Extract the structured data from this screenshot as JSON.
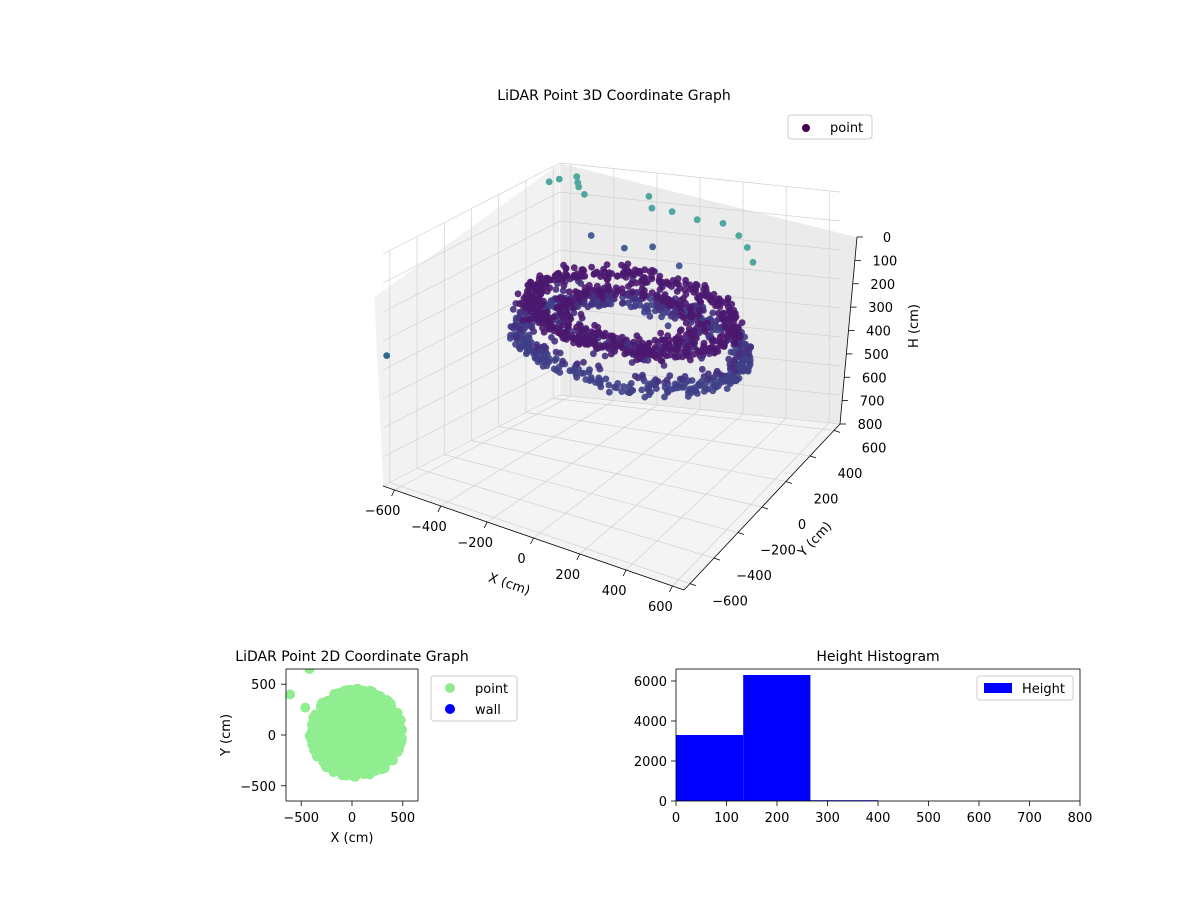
{
  "chart_data": [
    {
      "type": "scatter3d",
      "title": "LiDAR Point 3D Coordinate Graph",
      "xlabel": "X (cm)",
      "ylabel": "Y (cm)",
      "zlabel": "H (cm)",
      "xlim": [
        -650,
        650
      ],
      "ylim": [
        -650,
        650
      ],
      "zlim": [
        800,
        0
      ],
      "xticks": [
        -600,
        -400,
        -200,
        0,
        200,
        400,
        600
      ],
      "yticks": [
        -600,
        -400,
        -200,
        0,
        200,
        400,
        600
      ],
      "zticks": [
        0,
        100,
        200,
        300,
        400,
        500,
        600,
        700,
        800
      ],
      "colormap": "viridis",
      "grid": true,
      "legend": {
        "placement": "upper-right",
        "entries": [
          {
            "label": "point",
            "color": "#440154"
          }
        ]
      },
      "series": [
        {
          "name": "point",
          "description_of_bulk": "dense ring-shaped cloud of ~10,000 points, r≈250–450 cm, H≈150–330 cm",
          "outliers": [
            {
              "x": -560,
              "y": 620,
              "h": 15
            },
            {
              "x": -540,
              "y": 600,
              "h": 40
            },
            {
              "x": -600,
              "y": 560,
              "h": 20
            },
            {
              "x": -520,
              "y": 560,
              "h": 10
            },
            {
              "x": -620,
              "y": 520,
              "h": 25
            },
            {
              "x": -480,
              "y": 540,
              "h": 35
            },
            {
              "x": -260,
              "y": 640,
              "h": 5
            },
            {
              "x": -200,
              "y": 560,
              "h": 10
            },
            {
              "x": -160,
              "y": 640,
              "h": 30
            },
            {
              "x": -40,
              "y": 620,
              "h": 20
            },
            {
              "x": 60,
              "y": 640,
              "h": 10
            },
            {
              "x": 140,
              "y": 620,
              "h": 25
            },
            {
              "x": 200,
              "y": 580,
              "h": 40
            },
            {
              "x": 260,
              "y": 520,
              "h": 60
            },
            {
              "x": -380,
              "y": 420,
              "h": 120
            },
            {
              "x": -260,
              "y": 460,
              "h": 140
            },
            {
              "x": -150,
              "y": 480,
              "h": 110
            },
            {
              "x": 0,
              "y": 420,
              "h": 120
            },
            {
              "x": -640,
              "y": -640,
              "h": 350
            }
          ]
        }
      ]
    },
    {
      "type": "scatter",
      "title": "LiDAR Point 2D Coordinate Graph",
      "xlabel": "X (cm)",
      "ylabel": "Y (cm)",
      "xlim": [
        -650,
        650
      ],
      "ylim": [
        -650,
        650
      ],
      "xticks": [
        -500,
        0,
        500
      ],
      "yticks": [
        -500,
        0,
        500
      ],
      "legend": {
        "placement": "outside-right",
        "entries": [
          {
            "label": "point",
            "color": "#90ee90"
          },
          {
            "label": "wall",
            "color": "#0000ff"
          }
        ]
      },
      "series": [
        {
          "name": "point",
          "color": "#90ee90",
          "description_of_bulk": "filled blob of points spanning X≈-420–500, Y≈-430–480",
          "outliers": [
            {
              "x": -610,
              "y": 400
            },
            {
              "x": -460,
              "y": 270
            },
            {
              "x": -420,
              "y": 650
            }
          ]
        },
        {
          "name": "wall",
          "color": "#0000ff",
          "values": []
        }
      ]
    },
    {
      "type": "histogram",
      "title": "Height Histogram",
      "xlim": [
        0,
        800
      ],
      "ylim": [
        0,
        6600
      ],
      "xticks": [
        0,
        100,
        200,
        300,
        400,
        500,
        600,
        700,
        800
      ],
      "yticks": [
        0,
        2000,
        4000,
        6000
      ],
      "color": "#0000ff",
      "legend": {
        "placement": "upper-right",
        "entries": [
          {
            "label": "Height",
            "color": "#0000ff"
          }
        ]
      },
      "bins": [
        {
          "start": 0,
          "end": 133,
          "count": 3300
        },
        {
          "start": 133,
          "end": 266,
          "count": 6300
        },
        {
          "start": 266,
          "end": 400,
          "count": 40
        },
        {
          "start": 400,
          "end": 533,
          "count": 5
        },
        {
          "start": 533,
          "end": 666,
          "count": 3
        },
        {
          "start": 666,
          "end": 800,
          "count": 3
        }
      ]
    }
  ]
}
